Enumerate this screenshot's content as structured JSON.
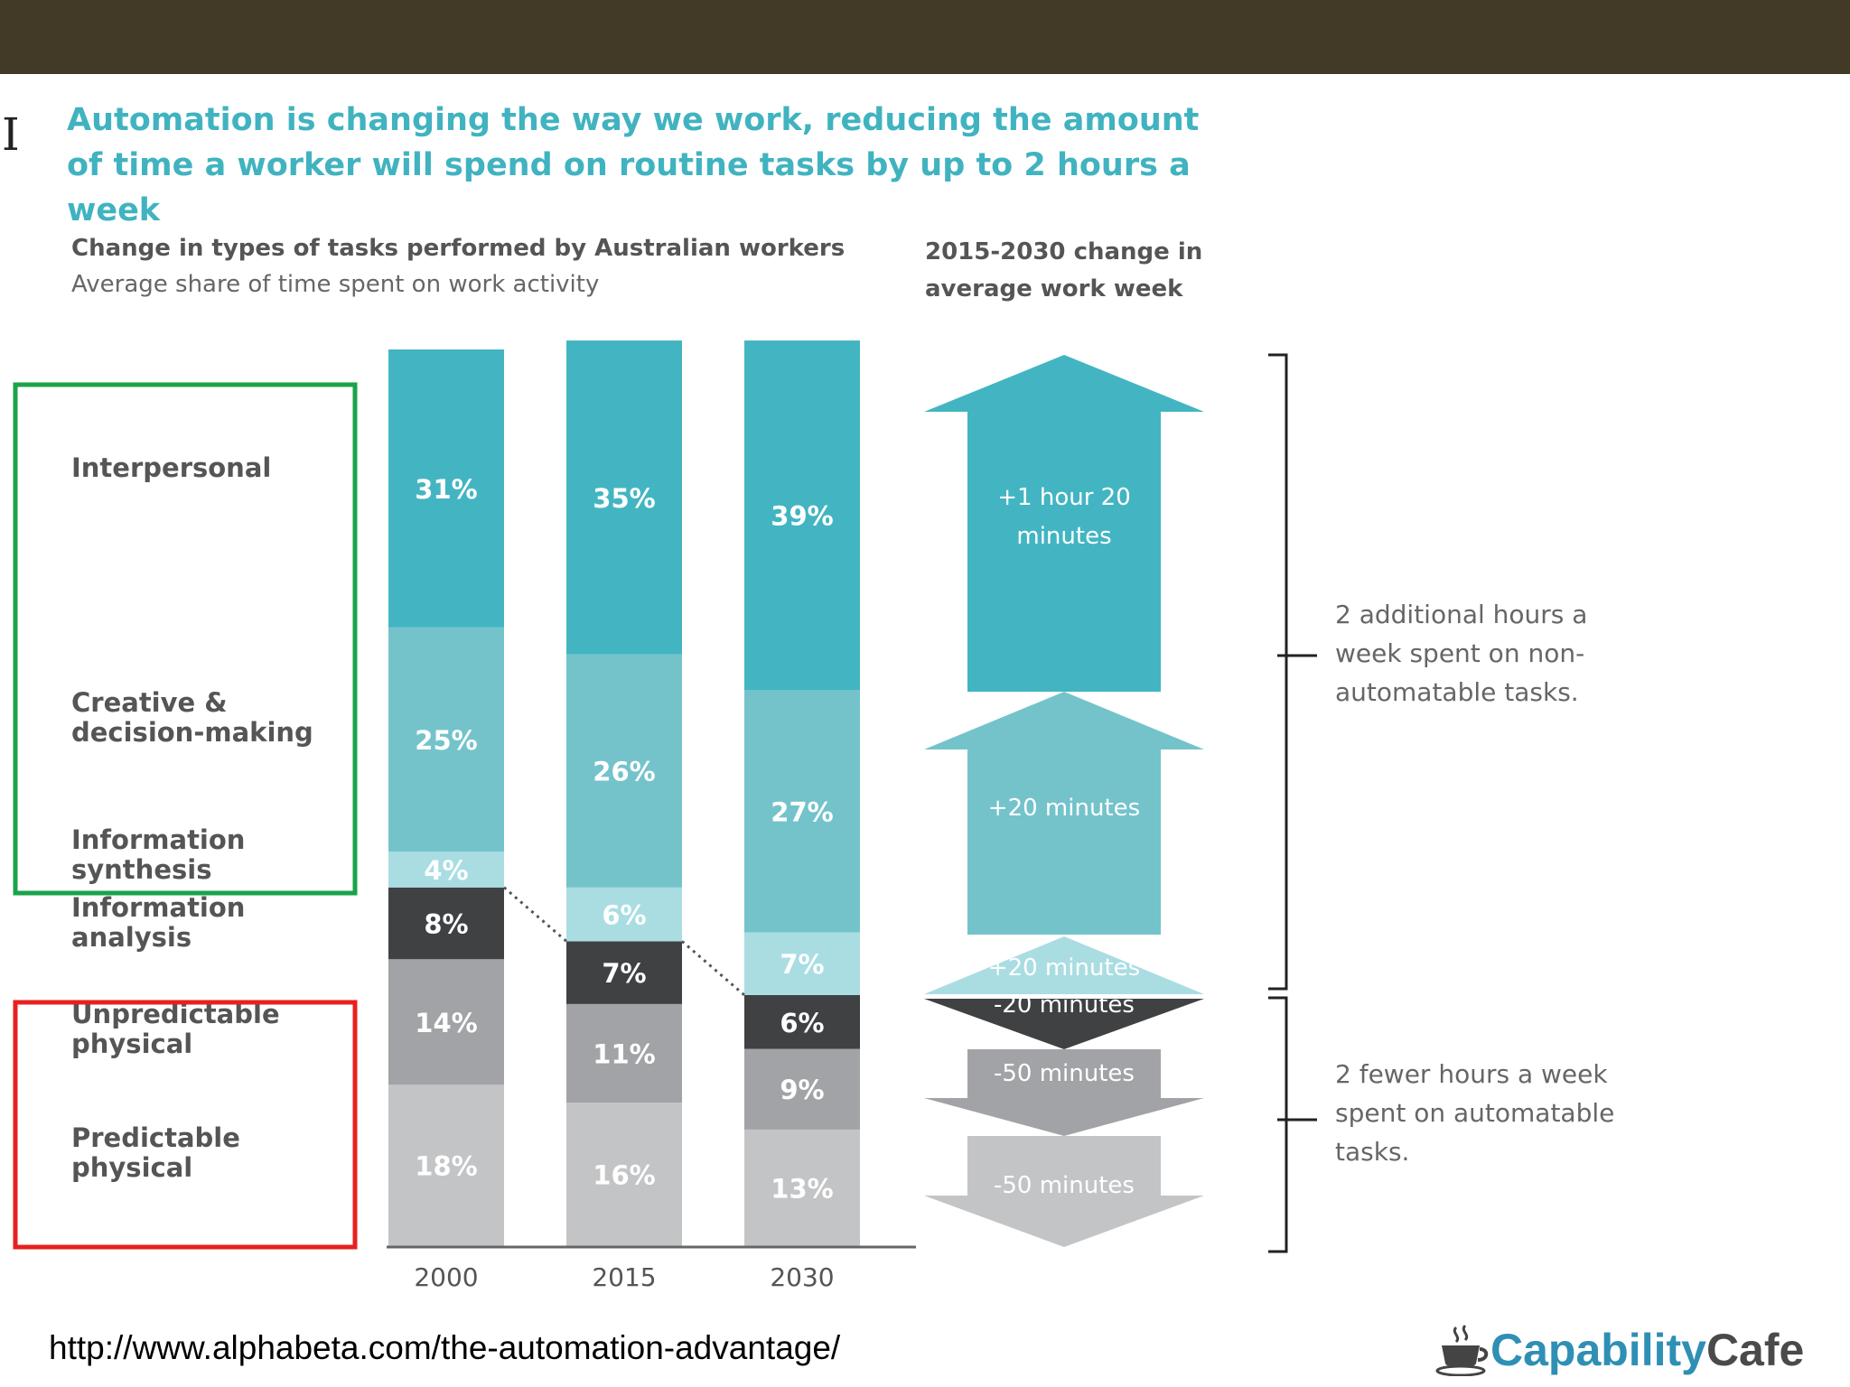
{
  "slide": {
    "headline": "Automation is changing the way we work, reducing the amount of time a worker will spend on routine tasks by up to 2 hours a week",
    "source_url": "http://www.alphabeta.com/the-automation-advantage/",
    "logo_text_part1": "Capability",
    "logo_text_part2": "Cafe",
    "cursor_glyph": "I"
  },
  "chart_data": {
    "type": "bar",
    "stacked": true,
    "title": "Change in types of tasks performed by Australian workers",
    "subtitle": "Average share of time spent on work activity",
    "categories": [
      "2000",
      "2015",
      "2030"
    ],
    "series": [
      {
        "name": "Predictable physical",
        "values": [
          18,
          16,
          13
        ],
        "labels": [
          "18%",
          "16%",
          "13%"
        ],
        "color": "#c3c4c6"
      },
      {
        "name": "Unpredictable physical",
        "values": [
          14,
          11,
          9
        ],
        "labels": [
          "14%",
          "11%",
          "9%"
        ],
        "color": "#a2a3a6"
      },
      {
        "name": "Information analysis",
        "values": [
          8,
          7,
          6
        ],
        "labels": [
          "8%",
          "7%",
          "6%"
        ],
        "color": "#3f4143"
      },
      {
        "name": "Information synthesis",
        "values": [
          4,
          6,
          7
        ],
        "labels": [
          "4%",
          "6%",
          "7%"
        ],
        "color": "#a9dde2"
      },
      {
        "name": "Creative & decision-making",
        "values": [
          25,
          26,
          27
        ],
        "labels": [
          "25%",
          "26%",
          "27%"
        ],
        "color": "#74c3cb"
      },
      {
        "name": "Interpersonal",
        "values": [
          31,
          35,
          39
        ],
        "labels": [
          "31%",
          "35%",
          "39%"
        ],
        "color": "#43b5c2"
      }
    ],
    "row_labels": [
      {
        "key": "interpersonal",
        "lines": [
          "Interpersonal"
        ]
      },
      {
        "key": "creative",
        "lines": [
          "Creative &",
          "decision-making"
        ]
      },
      {
        "key": "synthesis",
        "lines": [
          "Information",
          "synthesis"
        ]
      },
      {
        "key": "analysis",
        "lines": [
          "Information",
          "analysis"
        ]
      },
      {
        "key": "unpredictable",
        "lines": [
          "Unpredictable",
          "physical"
        ]
      },
      {
        "key": "predictable",
        "lines": [
          "Predictable",
          "physical"
        ]
      }
    ],
    "highlight_boxes": [
      {
        "color": "#1aa34a",
        "groups": [
          "Interpersonal",
          "Creative & decision-making",
          "Information synthesis"
        ]
      },
      {
        "color": "#e8201f",
        "groups": [
          "Unpredictable physical",
          "Predictable physical"
        ]
      }
    ],
    "arrow_panel": {
      "title": "2015-2030 change in average work week",
      "arrows": [
        {
          "label_lines": [
            "+1 hour 20",
            "minutes"
          ],
          "direction": "up",
          "minutes": 80,
          "color": "#43b5c2"
        },
        {
          "label_lines": [
            "+20 minutes"
          ],
          "direction": "up",
          "minutes": 20,
          "color": "#74c3cb"
        },
        {
          "label_lines": [
            "+20 minutes"
          ],
          "direction": "up",
          "minutes": 20,
          "color": "#a9dde2"
        },
        {
          "label_lines": [
            "-20 minutes"
          ],
          "direction": "down",
          "minutes": -20,
          "color": "#3f4143"
        },
        {
          "label_lines": [
            "-50 minutes"
          ],
          "direction": "down",
          "minutes": -50,
          "color": "#a2a3a6"
        },
        {
          "label_lines": [
            "-50 minutes"
          ],
          "direction": "down",
          "minutes": -50,
          "color": "#c3c4c6"
        }
      ],
      "brackets": [
        {
          "text_lines": [
            "2 additional hours a",
            "week spent on non-",
            "automatable tasks."
          ]
        },
        {
          "text_lines": [
            "2 fewer hours a week",
            "spent on automatable",
            "tasks."
          ]
        }
      ]
    }
  }
}
